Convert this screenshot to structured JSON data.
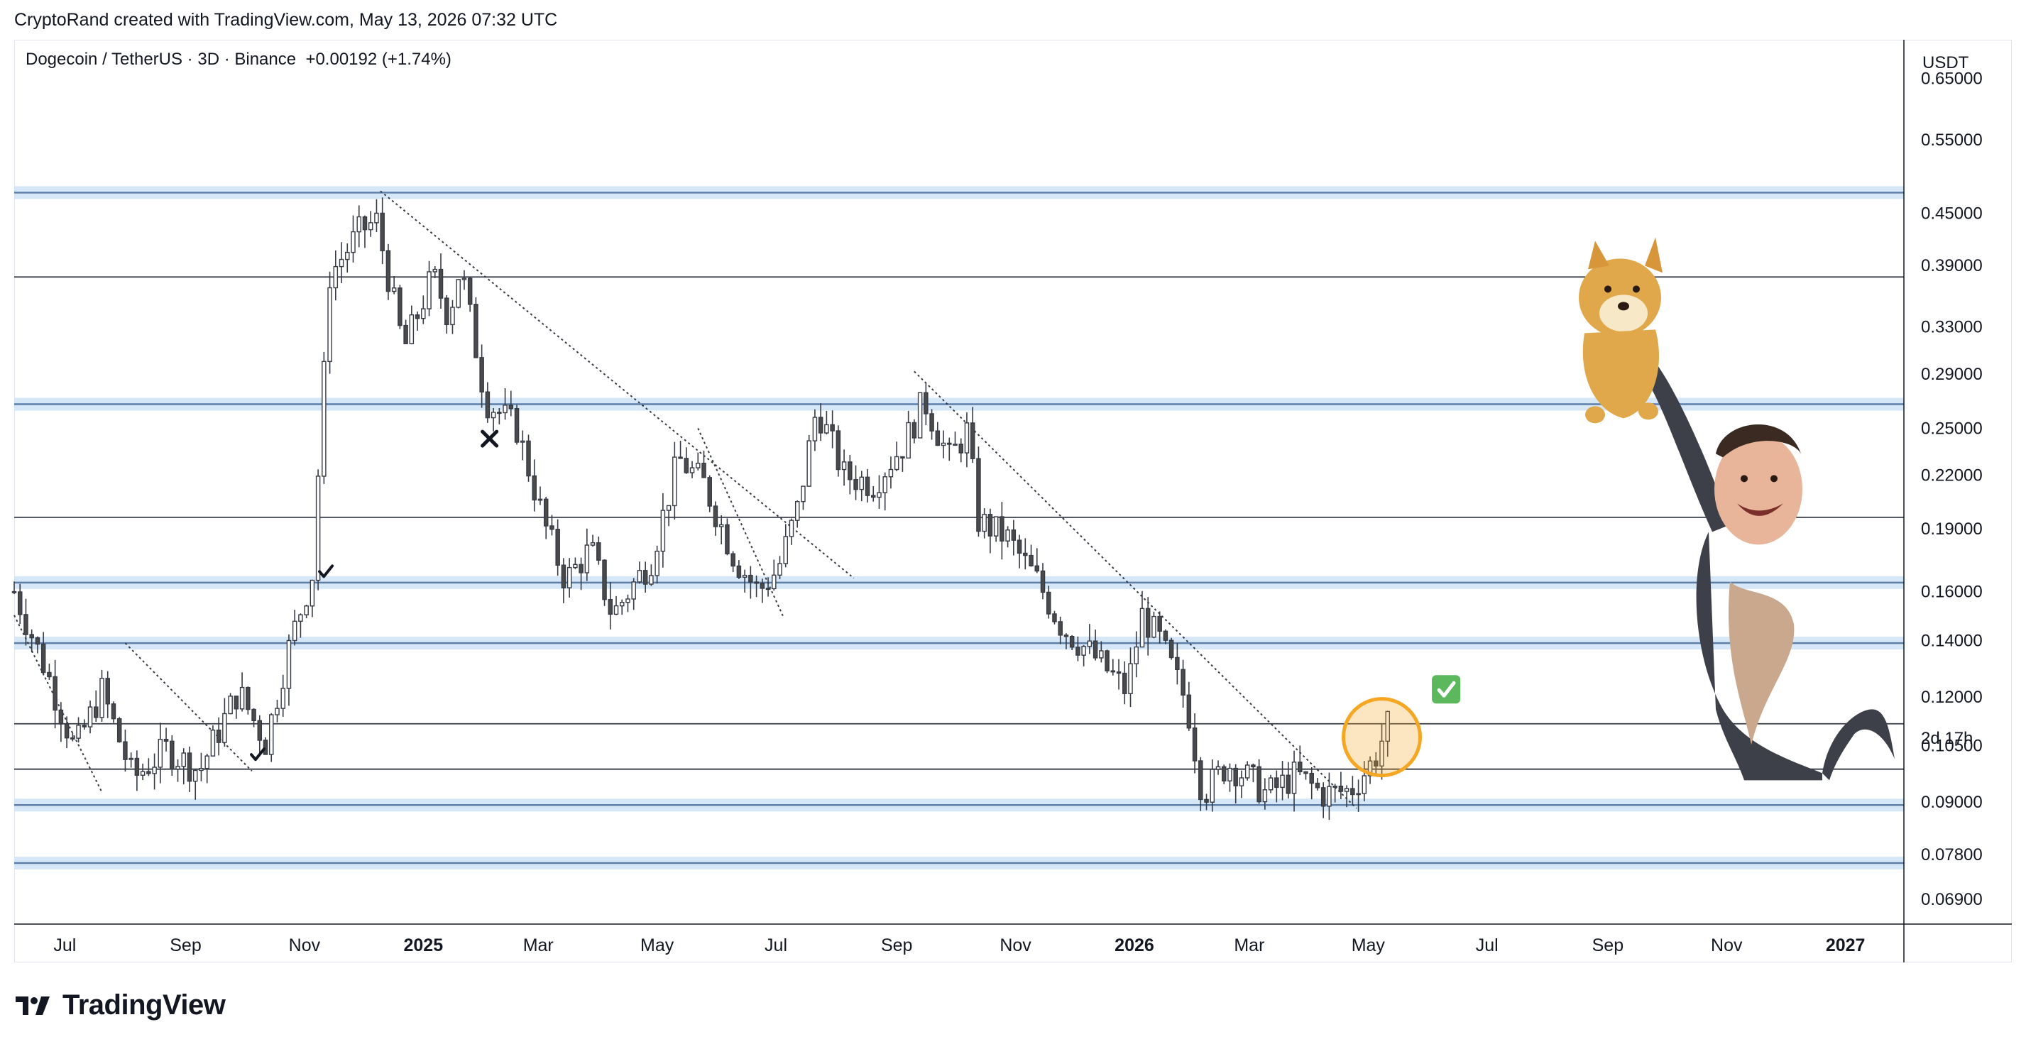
{
  "header": {
    "title": "CryptoRand created with TradingView.com, May 13, 2026 07:32 UTC"
  },
  "symbol": {
    "name": "Dogecoin / TetherUS · 3D · Binance",
    "change": "+0.00192 (+1.74%)"
  },
  "footer": {
    "brand": "TradingView",
    "logo_icon": "tradingview-logo-icon"
  },
  "colors": {
    "up_candle": "#ffffff",
    "down_candle": "#4a4a4a",
    "candle_outline": "#363a45",
    "zone_fill": "#cfe3f7",
    "zone_line": "#5d7fa8",
    "level_line": "#363a45",
    "highlight_circle": "#f5a623"
  },
  "chart_data": {
    "type": "candlestick",
    "title": "Dogecoin / TetherUS · 3D · Binance",
    "price_axis": {
      "unit": "USDT",
      "scale": "log",
      "range": [
        0.0645,
        0.72
      ],
      "ticks": [
        "0.65000",
        "0.55000",
        "0.45000",
        "0.39000",
        "0.33000",
        "0.29000",
        "0.25000",
        "0.22000",
        "0.19000",
        "0.16000",
        "0.14000",
        "0.12000",
        "0.10500",
        "0.09000",
        "0.07800",
        "0.06900"
      ],
      "countdown_label": "2d 17h"
    },
    "time_axis": {
      "range": [
        "2024-06-05",
        "2027-01-31"
      ],
      "ticks": [
        {
          "label": "Jul",
          "date": "2024-07-01",
          "bold": false
        },
        {
          "label": "Sep",
          "date": "2024-09-01",
          "bold": false
        },
        {
          "label": "Nov",
          "date": "2024-11-01",
          "bold": false
        },
        {
          "label": "2025",
          "date": "2025-01-01",
          "bold": true
        },
        {
          "label": "Mar",
          "date": "2025-03-01",
          "bold": false
        },
        {
          "label": "May",
          "date": "2025-05-01",
          "bold": false
        },
        {
          "label": "Jul",
          "date": "2025-07-01",
          "bold": false
        },
        {
          "label": "Sep",
          "date": "2025-09-01",
          "bold": false
        },
        {
          "label": "Nov",
          "date": "2025-11-01",
          "bold": false
        },
        {
          "label": "2026",
          "date": "2026-01-01",
          "bold": true
        },
        {
          "label": "Mar",
          "date": "2026-03-01",
          "bold": false
        },
        {
          "label": "May",
          "date": "2026-05-01",
          "bold": false
        },
        {
          "label": "Jul",
          "date": "2026-07-01",
          "bold": false
        },
        {
          "label": "Sep",
          "date": "2026-09-01",
          "bold": false
        },
        {
          "label": "Nov",
          "date": "2026-11-01",
          "bold": false
        },
        {
          "label": "2027",
          "date": "2027-01-01",
          "bold": true
        }
      ]
    },
    "candle_interval_days": 3,
    "price_path": [
      [
        "2024-06-05",
        0.16
      ],
      [
        "2024-06-22",
        0.128
      ],
      [
        "2024-07-06",
        0.104
      ],
      [
        "2024-07-20",
        0.122
      ],
      [
        "2024-08-05",
        0.096
      ],
      [
        "2024-08-22",
        0.104
      ],
      [
        "2024-09-08",
        0.098
      ],
      [
        "2024-09-28",
        0.122
      ],
      [
        "2024-10-12",
        0.106
      ],
      [
        "2024-10-25",
        0.14
      ],
      [
        "2024-11-05",
        0.168
      ],
      [
        "2024-11-14",
        0.38
      ],
      [
        "2024-11-30",
        0.43
      ],
      [
        "2024-12-08",
        0.44
      ],
      [
        "2024-12-22",
        0.31
      ],
      [
        "2025-01-06",
        0.38
      ],
      [
        "2025-01-14",
        0.34
      ],
      [
        "2025-01-20",
        0.39
      ],
      [
        "2025-02-02",
        0.27
      ],
      [
        "2025-02-18",
        0.25
      ],
      [
        "2025-03-05",
        0.19
      ],
      [
        "2025-03-15",
        0.165
      ],
      [
        "2025-03-28",
        0.18
      ],
      [
        "2025-04-08",
        0.15
      ],
      [
        "2025-04-28",
        0.175
      ],
      [
        "2025-05-12",
        0.23
      ],
      [
        "2025-05-25",
        0.215
      ],
      [
        "2025-06-10",
        0.175
      ],
      [
        "2025-06-22",
        0.16
      ],
      [
        "2025-07-02",
        0.17
      ],
      [
        "2025-07-12",
        0.2
      ],
      [
        "2025-07-22",
        0.265
      ],
      [
        "2025-08-05",
        0.22
      ],
      [
        "2025-08-20",
        0.215
      ],
      [
        "2025-09-05",
        0.24
      ],
      [
        "2025-09-15",
        0.27
      ],
      [
        "2025-09-28",
        0.23
      ],
      [
        "2025-10-08",
        0.25
      ],
      [
        "2025-10-12",
        0.195
      ],
      [
        "2025-10-28",
        0.185
      ],
      [
        "2025-11-12",
        0.165
      ],
      [
        "2025-11-25",
        0.145
      ],
      [
        "2025-12-10",
        0.135
      ],
      [
        "2025-12-28",
        0.122
      ],
      [
        "2026-01-05",
        0.15
      ],
      [
        "2026-01-14",
        0.14
      ],
      [
        "2026-01-28",
        0.118
      ],
      [
        "2026-02-05",
        0.092
      ],
      [
        "2026-02-18",
        0.1
      ],
      [
        "2026-03-01",
        0.096
      ],
      [
        "2026-03-10",
        0.092
      ],
      [
        "2026-03-25",
        0.097
      ],
      [
        "2026-04-08",
        0.092
      ],
      [
        "2026-04-22",
        0.093
      ],
      [
        "2026-05-04",
        0.101
      ],
      [
        "2026-05-11",
        0.111
      ]
    ],
    "horizontal_levels": [
      {
        "price": 0.476,
        "kind": "zone"
      },
      {
        "price": 0.378,
        "kind": "line"
      },
      {
        "price": 0.267,
        "kind": "zone"
      },
      {
        "price": 0.196,
        "kind": "line"
      },
      {
        "price": 0.164,
        "kind": "zone"
      },
      {
        "price": 0.139,
        "kind": "zone"
      },
      {
        "price": 0.1115,
        "kind": "line"
      },
      {
        "price": 0.0985,
        "kind": "line"
      },
      {
        "price": 0.0893,
        "kind": "zone"
      },
      {
        "price": 0.0762,
        "kind": "zone"
      }
    ],
    "trendlines": [
      {
        "from": [
          "2024-06-05",
          0.15
        ],
        "to": [
          "2024-07-20",
          0.0925
        ]
      },
      {
        "from": [
          "2024-08-01",
          0.139
        ],
        "to": [
          "2024-10-05",
          0.098
        ]
      },
      {
        "from": [
          "2024-12-10",
          0.478
        ],
        "to": [
          "2025-08-10",
          0.166
        ]
      },
      {
        "from": [
          "2025-05-22",
          0.25
        ],
        "to": [
          "2025-07-05",
          0.149
        ]
      },
      {
        "from": [
          "2025-09-10",
          0.292
        ],
        "to": [
          "2026-04-25",
          0.0885
        ]
      }
    ],
    "annotations": [
      {
        "kind": "check",
        "at": [
          "2024-11-12",
          0.169
        ]
      },
      {
        "kind": "check",
        "at": [
          "2024-10-08",
          0.1025
        ]
      },
      {
        "kind": "cross",
        "at": [
          "2025-02-04",
          0.243
        ]
      },
      {
        "kind": "circle",
        "at": [
          "2026-05-08",
          0.1075
        ]
      },
      {
        "kind": "green-check-emoji",
        "at": [
          "2026-06-10",
          0.1225
        ]
      }
    ],
    "image": {
      "kind": "meme-sticker",
      "description": "Elon Musk holding up Doge",
      "at": [
        "2026-09-20",
        0.22
      ]
    }
  }
}
